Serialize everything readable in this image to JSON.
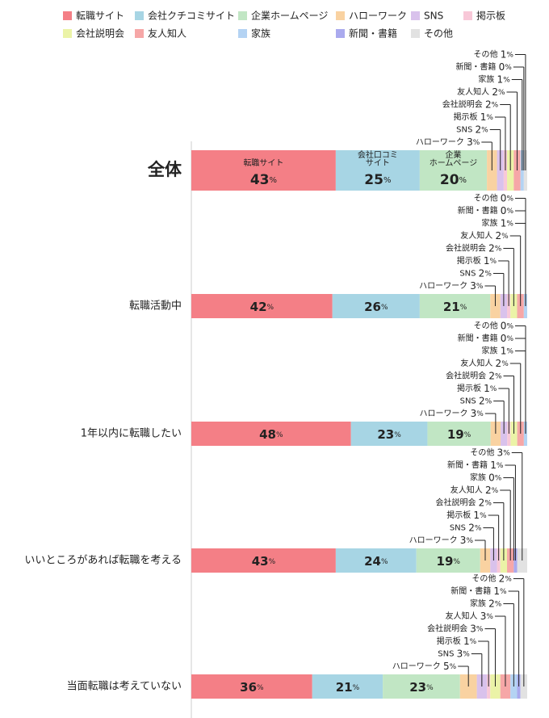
{
  "chart_data": {
    "type": "bar",
    "orientation": "horizontal",
    "stacked": true,
    "unit": "%",
    "legend_position": "top",
    "series": [
      {
        "name": "転職サイト",
        "color": "#f47f86"
      },
      {
        "name": "会社クチコミサイト",
        "color": "#a7d5e4"
      },
      {
        "name": "企業ホームページ",
        "color": "#c1e6c4"
      },
      {
        "name": "ハローワーク",
        "color": "#f9d2a1"
      },
      {
        "name": "SNS",
        "color": "#d9c2ec"
      },
      {
        "name": "掲示板",
        "color": "#f8c8d8"
      },
      {
        "name": "会社説明会",
        "color": "#ebf3a7"
      },
      {
        "name": "友人知人",
        "color": "#f6a7a7"
      },
      {
        "name": "家族",
        "color": "#b4d3f3"
      },
      {
        "name": "新聞・書籍",
        "color": "#aaaaee"
      },
      {
        "name": "その他",
        "color": "#e2e2e2"
      }
    ],
    "inside_labels": {
      "total": [
        "転職サイト",
        "会社口コミ\nサイト",
        "企業\nホームページ"
      ]
    },
    "categories": [
      "全体",
      "転職活動中",
      "1年以内に転職したい",
      "いいところがあれば転職を考える",
      "当面転職は考えていない"
    ],
    "values": [
      [
        43,
        25,
        20,
        3,
        2,
        1,
        2,
        2,
        1,
        0,
        1
      ],
      [
        42,
        26,
        21,
        3,
        2,
        1,
        2,
        2,
        1,
        0,
        0
      ],
      [
        48,
        23,
        19,
        3,
        2,
        1,
        2,
        2,
        1,
        0,
        0
      ],
      [
        43,
        24,
        19,
        3,
        2,
        1,
        2,
        2,
        0,
        1,
        3
      ],
      [
        36,
        21,
        23,
        5,
        3,
        1,
        3,
        3,
        2,
        1,
        2
      ]
    ]
  }
}
